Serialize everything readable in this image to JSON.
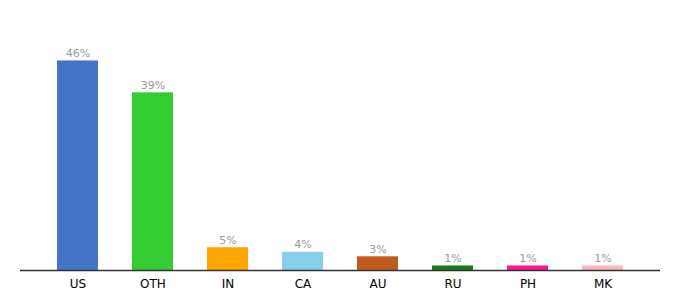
{
  "chart_data": {
    "type": "bar",
    "categories": [
      "US",
      "OTH",
      "IN",
      "CA",
      "AU",
      "RU",
      "PH",
      "MK"
    ],
    "values": [
      46,
      39,
      5,
      4,
      3,
      1,
      1,
      1
    ],
    "value_labels": [
      "46%",
      "39%",
      "5%",
      "4%",
      "3%",
      "1%",
      "1%",
      "1%"
    ],
    "colors": [
      "#4472C4",
      "#33CC33",
      "#FFA500",
      "#87CEEB",
      "#C05A1A",
      "#1A7A1A",
      "#FF1493",
      "#FFB6C1"
    ],
    "ylim": [
      0,
      54
    ],
    "data_labels": true,
    "tick_labels": "x",
    "grid": false
  }
}
